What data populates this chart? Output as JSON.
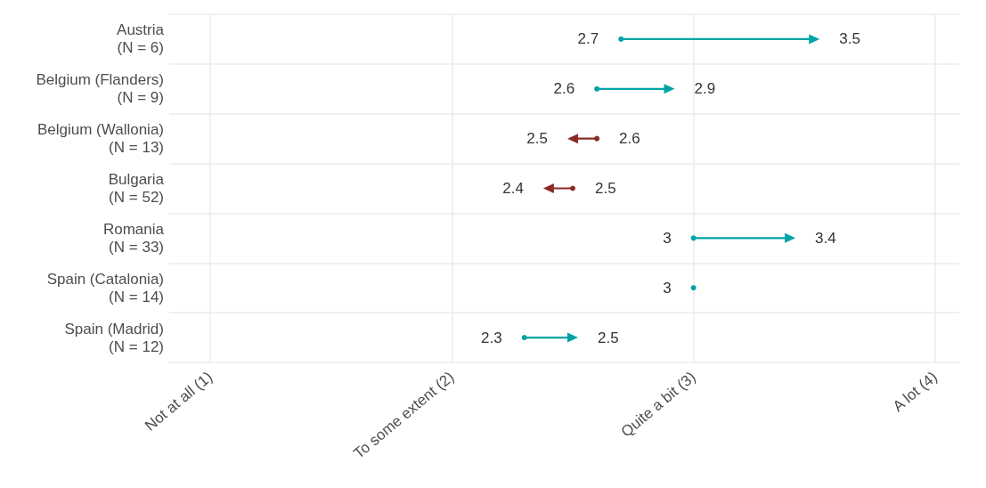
{
  "chart_data": {
    "type": "scatter",
    "orientation": "horizontal",
    "categories": [
      "Austria\n(N = 6)",
      "Belgium (Flanders)\n(N = 9)",
      "Belgium (Wallonia)\n(N = 13)",
      "Bulgaria\n(N = 52)",
      "Romania\n(N = 33)",
      "Spain (Catalonia)\n(N = 14)",
      "Spain (Madrid)\n(N = 12)"
    ],
    "series": [
      {
        "values": [
          2.7,
          2.6,
          2.6,
          2.5,
          3,
          3,
          2.3
        ],
        "value_labels": [
          "2.7",
          "2.6",
          "2.6",
          "2.5",
          "3",
          "3",
          "2.3"
        ],
        "colors": [
          "#00a3a6",
          "#00a3a6",
          "#8b2a26",
          "#8b2a26",
          "#00a3a6",
          "#00a3a6",
          "#00a3a6"
        ]
      },
      {
        "values": [
          3.5,
          2.9,
          2.5,
          2.4,
          3.4,
          null,
          2.5
        ],
        "value_labels": [
          "3.5",
          "2.9",
          "2.5",
          "2.4",
          "3.4",
          null,
          "2.5"
        ],
        "colors": [
          "#00a3a6",
          "#00a3a6",
          "#8b2a26",
          "#8b2a26",
          "#00a3a6",
          null,
          "#00a3a6"
        ]
      }
    ],
    "xlim": [
      0.83,
      4.1
    ],
    "xticks": [
      {
        "value": 1,
        "label": "Not at all (1)"
      },
      {
        "value": 2,
        "label": "To some extent (2)"
      },
      {
        "value": 3,
        "label": "Quite a bit (3)"
      },
      {
        "value": 4,
        "label": "A lot (4)"
      }
    ],
    "grid": true
  }
}
